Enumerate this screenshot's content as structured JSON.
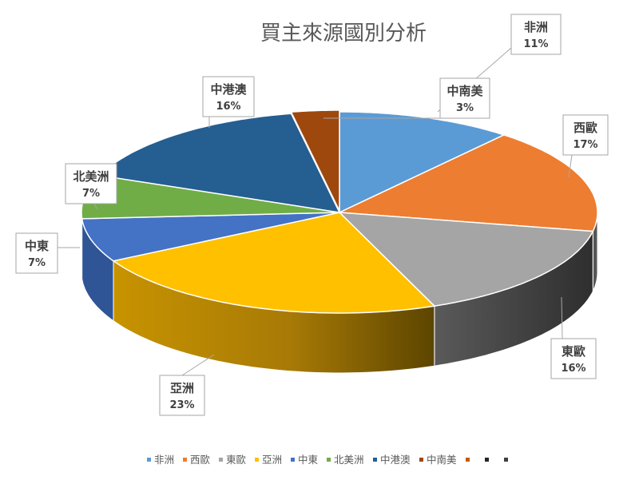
{
  "chart_data": {
    "type": "pie",
    "title": "買主來源國別分析",
    "categories": [
      "非洲",
      "西歐",
      "東歐",
      "亞洲",
      "中東",
      "北美洲",
      "中港澳",
      "中南美"
    ],
    "values": [
      11,
      17,
      16,
      23,
      7,
      7,
      16,
      3
    ],
    "value_labels": [
      "11%",
      "17%",
      "16%",
      "23%",
      "7%",
      "7%",
      "16%",
      "3%"
    ],
    "colors": [
      "#5B9BD5",
      "#ED7D31",
      "#A5A5A5",
      "#FFC000",
      "#4472C4",
      "#70AD47",
      "#255E91",
      "#9E480E"
    ],
    "legend_extra_colors": [
      "#C55A11",
      "#262626",
      "#404040"
    ],
    "legend": "bottom",
    "style": "3d-exploded"
  }
}
